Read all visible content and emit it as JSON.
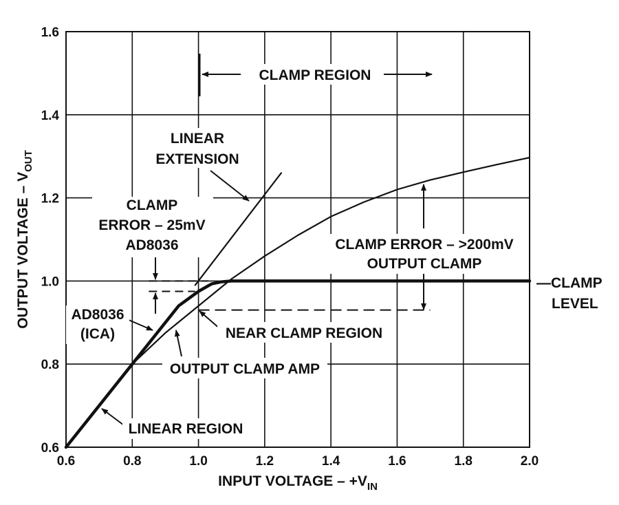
{
  "chart_data": {
    "type": "line",
    "xlabel": {
      "main": "INPUT VOLTAGE – +V",
      "sub": "IN"
    },
    "ylabel": {
      "main": "OUTPUT VOLTAGE – V",
      "sub": "OUT"
    },
    "xlim": [
      0.6,
      2.0
    ],
    "ylim": [
      0.6,
      1.6
    ],
    "x_ticks": [
      "0.6",
      "0.8",
      "1.0",
      "1.2",
      "1.4",
      "1.6",
      "1.8",
      "2.0"
    ],
    "y_ticks": [
      "0.6",
      "0.8",
      "1.0",
      "1.2",
      "1.4",
      "1.6"
    ],
    "x_tick_values": [
      0.6,
      0.8,
      1.0,
      1.2,
      1.4,
      1.6,
      1.8,
      2.0
    ],
    "y_tick_values": [
      0.6,
      0.8,
      1.0,
      1.2,
      1.4,
      1.6
    ],
    "grid": true,
    "series": [
      {
        "name": "AD8036 (ICA)",
        "style": "thick",
        "x": [
          0.6,
          0.8,
          0.94,
          1.0,
          1.04,
          1.07,
          1.1,
          2.0
        ],
        "y": [
          0.6,
          0.8,
          0.94,
          0.975,
          0.993,
          0.998,
          1.0,
          1.0
        ]
      },
      {
        "name": "OUTPUT CLAMP AMP",
        "style": "thin",
        "x": [
          0.6,
          0.8,
          0.9,
          1.0,
          1.1,
          1.2,
          1.3,
          1.4,
          1.5,
          1.6,
          1.7,
          1.8,
          1.9,
          2.0
        ],
        "y": [
          0.6,
          0.8,
          0.875,
          0.94,
          1.005,
          1.06,
          1.11,
          1.155,
          1.19,
          1.22,
          1.243,
          1.262,
          1.28,
          1.297
        ]
      },
      {
        "name": "LINEAR EXTENSION",
        "style": "thin",
        "x": [
          0.99,
          1.25
        ],
        "y": [
          0.99,
          1.26
        ]
      }
    ],
    "reference_lines": {
      "clamp_level_y": 1.0,
      "clamp_error_25mv_top_y": 1.0,
      "clamp_error_25mv_bottom_y": 0.975,
      "near_clamp_y": 0.93,
      "clamp_region_start_x": 1.0,
      "clamp_error_200mv_x": 1.68
    },
    "annotations": {
      "clamp_region": "CLAMP REGION",
      "linear_extension": [
        "LINEAR",
        "EXTENSION"
      ],
      "clamp_error_25mv": [
        "CLAMP",
        "ERROR – 25mV",
        "AD8036"
      ],
      "clamp_error_200mv": [
        "CLAMP ERROR – >200mV",
        "OUTPUT CLAMP"
      ],
      "clamp_level": [
        "—CLAMP",
        "LEVEL"
      ],
      "ad8036_ica": [
        "AD8036",
        "(ICA)"
      ],
      "near_clamp_region": "NEAR CLAMP REGION",
      "output_clamp_amp": "OUTPUT CLAMP AMP",
      "linear_region": "LINEAR REGION"
    }
  }
}
